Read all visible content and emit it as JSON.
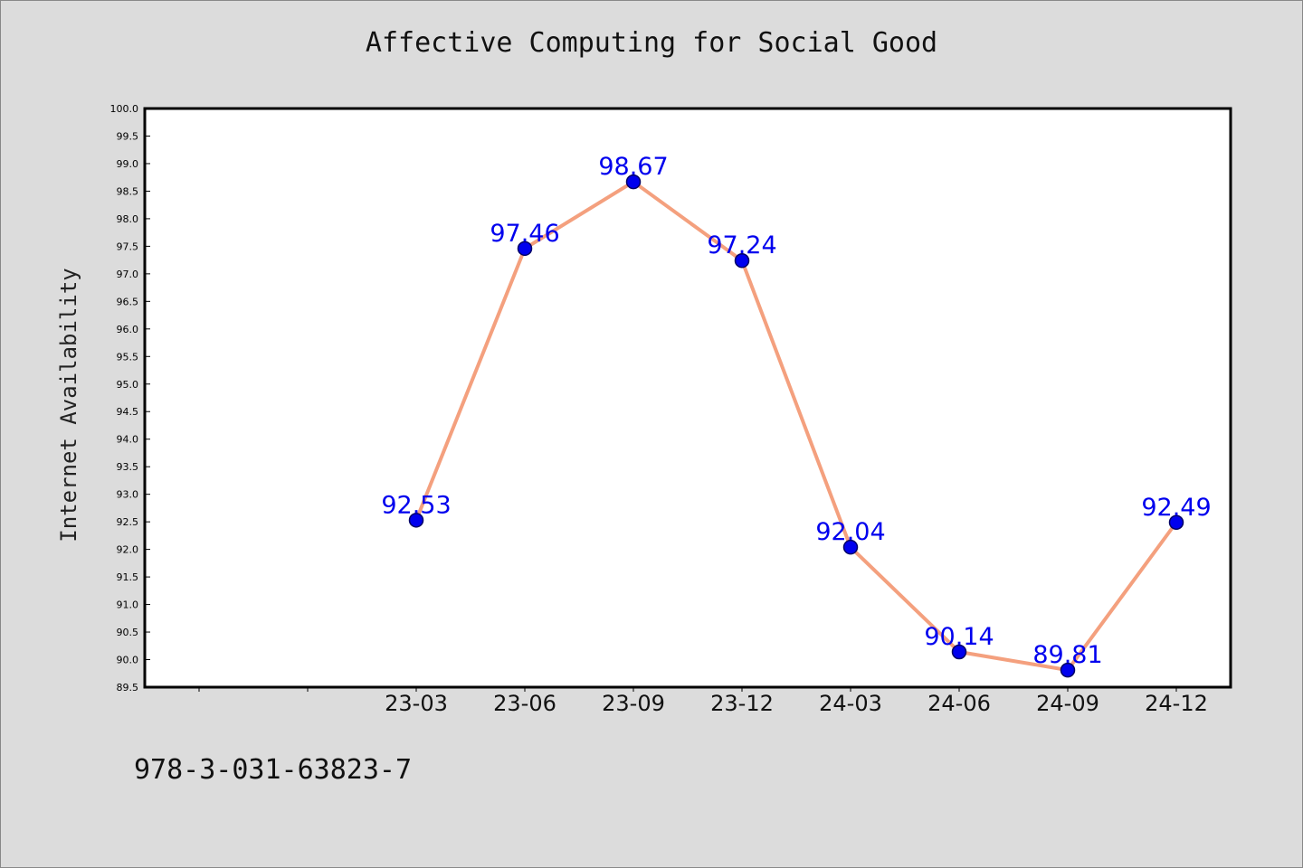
{
  "chart_data": {
    "type": "line",
    "title": "Affective Computing for Social Good",
    "xlabel": "",
    "ylabel": "Internet Availability",
    "categories": [
      "23-03",
      "23-06",
      "23-09",
      "23-12",
      "24-03",
      "24-06",
      "24-09",
      "24-12"
    ],
    "values": [
      92.53,
      97.46,
      98.67,
      97.24,
      92.04,
      90.14,
      89.81,
      92.49
    ],
    "data_labels": [
      "92.53",
      "97.46",
      "98.67",
      "97.24",
      "92.04",
      "90.14",
      "89.81",
      "92.49"
    ],
    "ylim": [
      89.5,
      100.0
    ],
    "y_ticks": [
      "89.5",
      "90.0",
      "90.5",
      "91.0",
      "91.5",
      "92.0",
      "92.5",
      "93.0",
      "93.5",
      "94.0",
      "94.5",
      "95.0",
      "95.5",
      "96.0",
      "96.5",
      "97.0",
      "97.5",
      "98.0",
      "98.5",
      "99.0",
      "99.5",
      "100.0"
    ],
    "grid": false,
    "colors": {
      "line": "#f4a07e",
      "marker": "#0000ee",
      "marker_edge": "#000066",
      "label": "#0000ee",
      "background": "#dcdcdc",
      "plot_background": "#ffffff"
    }
  },
  "footnote": "978-3-031-63823-7"
}
